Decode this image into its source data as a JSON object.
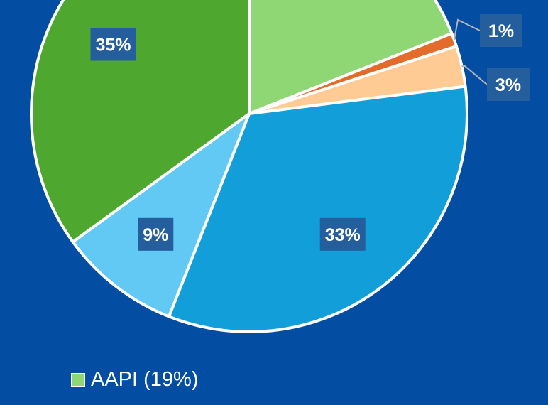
{
  "chart_data": {
    "type": "pie",
    "start_angle_deg": 0,
    "direction": "clockwise",
    "slices": [
      {
        "value": 19,
        "color": "#8fd774",
        "label": ""
      },
      {
        "value": 1,
        "color": "#e36c2a",
        "label": "1%"
      },
      {
        "value": 3,
        "color": "#fdcb93",
        "label": "3%"
      },
      {
        "value": 33,
        "color": "#129fd9",
        "label": "33%"
      },
      {
        "value": 9,
        "color": "#62c9f5",
        "label": "9%"
      },
      {
        "value": 35,
        "color": "#4ea72e",
        "label": "35%"
      }
    ],
    "legend": [
      {
        "label": "AAPI (19%)",
        "color": "#8fd774"
      }
    ]
  },
  "colors": {
    "background": "#034ea2",
    "label_box": "#255e9c",
    "slice_border": "#ffffff",
    "leader_line": "#b4b4b4"
  }
}
